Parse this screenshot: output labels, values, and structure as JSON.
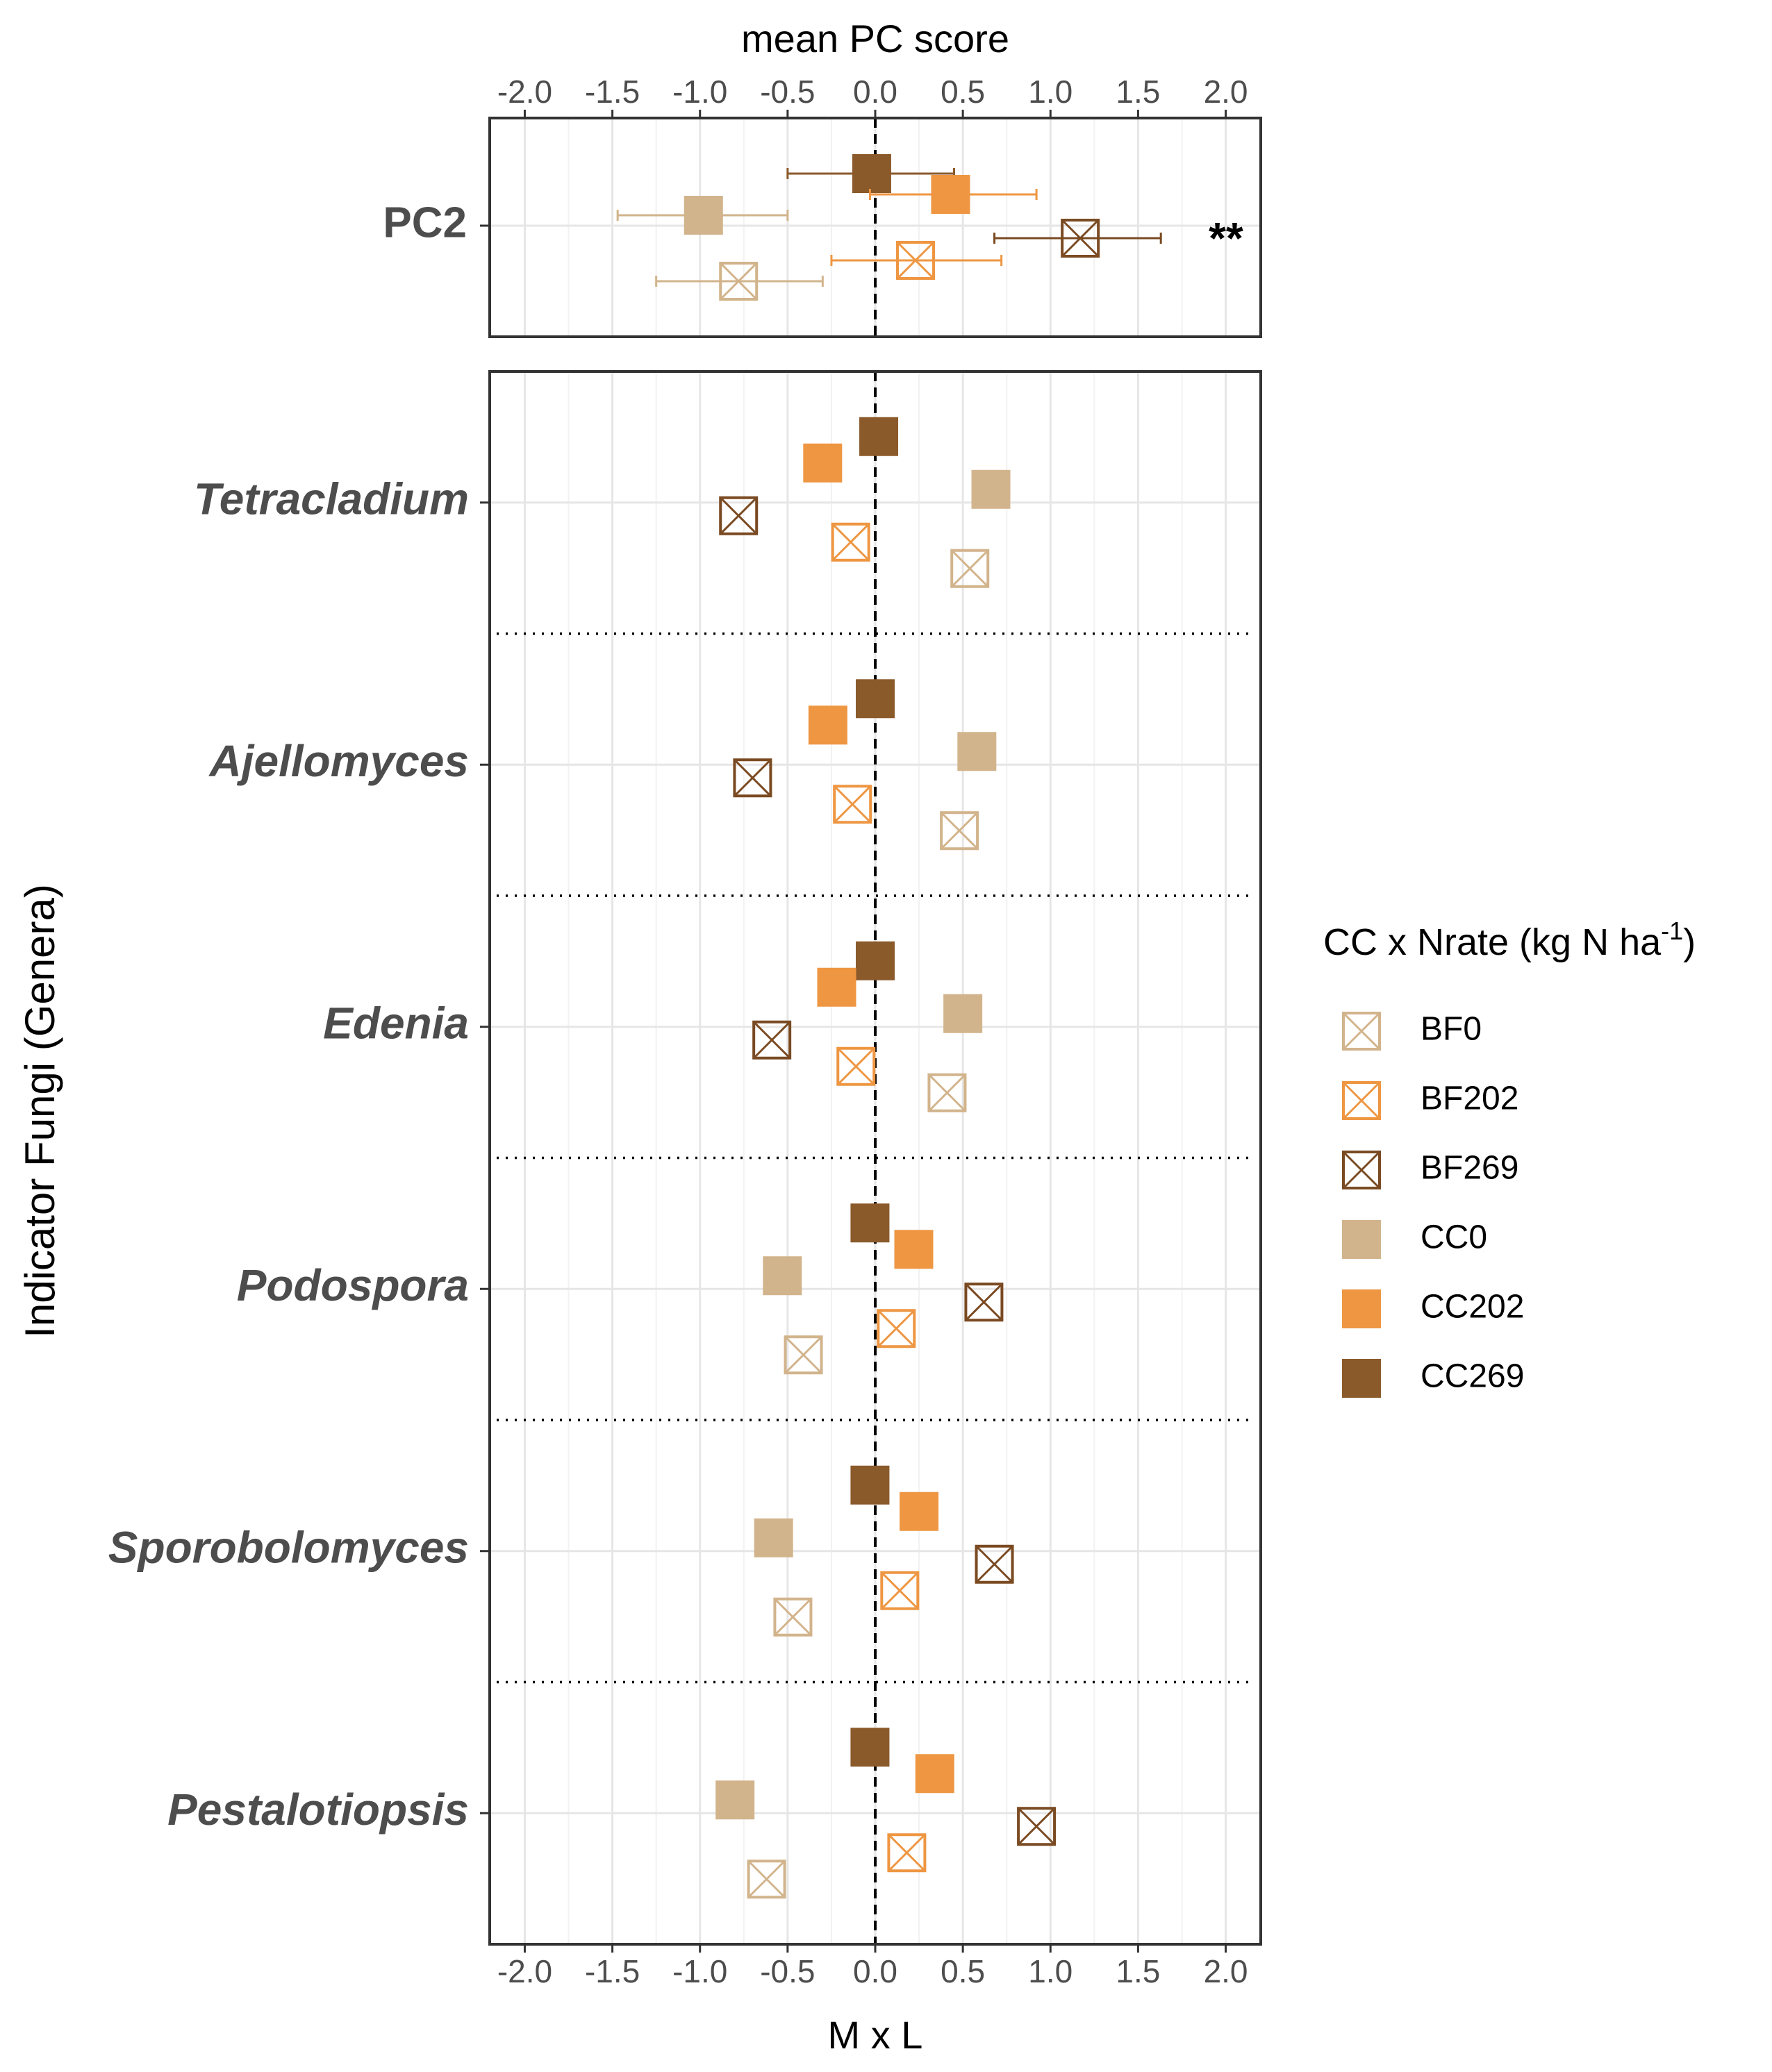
{
  "chart_data": {
    "type": "scatter",
    "subtype": "dot-plot with error bars",
    "top_axis_title": "mean PC score",
    "bottom_axis_title": "M x L",
    "y_axis_title": "Indicator Fungi (Genera)",
    "xlim": [
      -2.2,
      2.2
    ],
    "x_ticks": [
      -2.0,
      -1.5,
      -1.0,
      -0.5,
      0.0,
      0.5,
      1.0,
      1.5,
      2.0
    ],
    "x_tick_labels": [
      "-2.0",
      "-1.5",
      "-1.0",
      "-0.5",
      "0.0",
      "0.5",
      "1.0",
      "1.5",
      "2.0"
    ],
    "reference_line_x": 0,
    "legend": {
      "title": "CC x Nrate (kg N ha",
      "title_superscript": "-1",
      "title_close": ")",
      "position": "right",
      "entries": [
        {
          "label": "BF0",
          "shape": "crossed-box",
          "color": "#d2b48c"
        },
        {
          "label": "BF202",
          "shape": "crossed-box",
          "color": "#ee9642"
        },
        {
          "label": "BF269",
          "shape": "crossed-box",
          "color": "#7a4a22"
        },
        {
          "label": "CC0",
          "shape": "filled-square",
          "color": "#d2b48c"
        },
        {
          "label": "CC202",
          "shape": "filled-square",
          "color": "#ee9642"
        },
        {
          "label": "CC269",
          "shape": "filled-square",
          "color": "#8b5a2b"
        }
      ]
    },
    "panels": [
      {
        "name": "PC2",
        "label": "PC2",
        "significance": "**",
        "points": [
          {
            "group": "CC269",
            "value": -0.02,
            "ci": [
              -0.5,
              0.45
            ]
          },
          {
            "group": "CC202",
            "value": 0.43,
            "ci": [
              -0.03,
              0.92
            ]
          },
          {
            "group": "CC0",
            "value": -0.98,
            "ci": [
              -1.47,
              -0.5
            ]
          },
          {
            "group": "BF269",
            "value": 1.17,
            "ci": [
              0.68,
              1.63
            ]
          },
          {
            "group": "BF202",
            "value": 0.23,
            "ci": [
              -0.25,
              0.72
            ]
          },
          {
            "group": "BF0",
            "value": -0.78,
            "ci": [
              -1.25,
              -0.3
            ]
          }
        ]
      },
      {
        "name": "genera",
        "genera": [
          {
            "label": "Tetracladium",
            "points": [
              {
                "group": "CC269",
                "value": 0.02
              },
              {
                "group": "CC202",
                "value": -0.3
              },
              {
                "group": "CC0",
                "value": 0.66
              },
              {
                "group": "BF269",
                "value": -0.78
              },
              {
                "group": "BF202",
                "value": -0.14
              },
              {
                "group": "BF0",
                "value": 0.54
              }
            ]
          },
          {
            "label": "Ajellomyces",
            "points": [
              {
                "group": "CC269",
                "value": 0.0
              },
              {
                "group": "CC202",
                "value": -0.27
              },
              {
                "group": "CC0",
                "value": 0.58
              },
              {
                "group": "BF269",
                "value": -0.7
              },
              {
                "group": "BF202",
                "value": -0.13
              },
              {
                "group": "BF0",
                "value": 0.48
              }
            ]
          },
          {
            "label": "Edenia",
            "points": [
              {
                "group": "CC269",
                "value": 0.0
              },
              {
                "group": "CC202",
                "value": -0.22
              },
              {
                "group": "CC0",
                "value": 0.5
              },
              {
                "group": "BF269",
                "value": -0.59
              },
              {
                "group": "BF202",
                "value": -0.11
              },
              {
                "group": "BF0",
                "value": 0.41
              }
            ]
          },
          {
            "label": "Podospora",
            "points": [
              {
                "group": "CC269",
                "value": -0.03
              },
              {
                "group": "CC202",
                "value": 0.22
              },
              {
                "group": "CC0",
                "value": -0.53
              },
              {
                "group": "BF269",
                "value": 0.62
              },
              {
                "group": "BF202",
                "value": 0.12
              },
              {
                "group": "BF0",
                "value": -0.41
              }
            ]
          },
          {
            "label": "Sporobolomyces",
            "points": [
              {
                "group": "CC269",
                "value": -0.03
              },
              {
                "group": "CC202",
                "value": 0.25
              },
              {
                "group": "CC0",
                "value": -0.58
              },
              {
                "group": "BF269",
                "value": 0.68
              },
              {
                "group": "BF202",
                "value": 0.14
              },
              {
                "group": "BF0",
                "value": -0.47
              }
            ]
          },
          {
            "label": "Pestalotiopsis",
            "points": [
              {
                "group": "CC269",
                "value": -0.03
              },
              {
                "group": "CC202",
                "value": 0.34
              },
              {
                "group": "CC0",
                "value": -0.8
              },
              {
                "group": "BF269",
                "value": 0.92
              },
              {
                "group": "BF202",
                "value": 0.18
              },
              {
                "group": "BF0",
                "value": -0.62
              }
            ]
          }
        ]
      }
    ]
  }
}
